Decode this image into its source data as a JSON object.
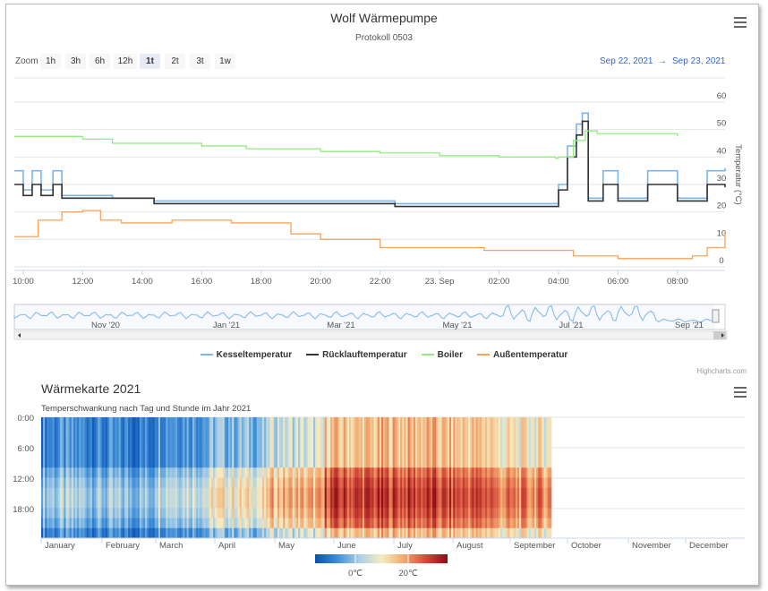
{
  "chart1": {
    "title": "Wolf Wärmepumpe",
    "subtitle": "Protokoll 0503",
    "zoom_label": "Zoom",
    "zoom_buttons": [
      "1h",
      "3h",
      "6h",
      "12h",
      "1t",
      "2t",
      "3t",
      "1w"
    ],
    "zoom_active": "1t",
    "range_from": "Sep 22, 2021",
    "range_arrow": "→",
    "range_to": "Sep 23, 2021",
    "credits": "Highcharts.com"
  },
  "chart_data": [
    {
      "type": "line",
      "title": "Wolf Wärmepumpe",
      "subtitle": "Protokoll 0503",
      "xlabel": "",
      "ylabel": "Temperatur (°C)",
      "ylim": [
        0,
        60
      ],
      "y_ticks": [
        0,
        10,
        20,
        30,
        40,
        50,
        60
      ],
      "x_ticks": [
        "10:00",
        "12:00",
        "14:00",
        "16:00",
        "18:00",
        "20:00",
        "22:00",
        "23. Sep",
        "02:00",
        "04:00",
        "06:00",
        "08:00"
      ],
      "navigator_ticks": [
        "Nov '20",
        "Jan '21",
        "Mar '21",
        "May '21",
        "Jul '21",
        "Sep '21"
      ],
      "legend_position": "bottom",
      "series": [
        {
          "name": "Kesseltemperatur",
          "color": "#7cb5ec",
          "x": [
            9.7,
            10.0,
            10.3,
            10.6,
            11.0,
            11.3,
            13.0,
            14.4,
            16.0,
            18.0,
            20.0,
            21.0,
            22.5,
            24.0,
            26.0,
            27.9,
            28.0,
            28.3,
            28.6,
            28.8,
            29.0,
            29.5,
            30.0,
            31.0,
            32.0,
            33.0,
            33.6
          ],
          "y": [
            35,
            28,
            35,
            28,
            35,
            26,
            25,
            24,
            24,
            24,
            24,
            24,
            23,
            23,
            23,
            23,
            30,
            44,
            52,
            56,
            25,
            35,
            25,
            35,
            25,
            35,
            36
          ]
        },
        {
          "name": "Rücklauftemperatur",
          "color": "#333333",
          "x": [
            9.7,
            10.0,
            10.3,
            10.6,
            11.0,
            11.3,
            13.0,
            14.4,
            16.0,
            18.0,
            20.0,
            22.0,
            22.5,
            24.0,
            26.0,
            27.9,
            28.0,
            28.3,
            28.6,
            28.8,
            29.0,
            29.5,
            30.0,
            31.0,
            32.0,
            33.0,
            33.6
          ],
          "y": [
            30,
            26,
            30,
            26,
            30,
            25,
            25,
            23,
            23,
            23,
            23,
            23,
            22,
            22,
            22,
            22,
            28,
            40,
            48,
            53,
            24,
            30,
            24,
            30,
            24,
            30,
            29
          ]
        },
        {
          "name": "Boiler",
          "color": "#90ed7d",
          "x": [
            9.7,
            10.3,
            12.0,
            13.0,
            14.0,
            16.0,
            17.5,
            20.0,
            22.0,
            24.0,
            26.0,
            27.9,
            28.0,
            28.5,
            28.9,
            29.3,
            30.0,
            32.0
          ],
          "y": [
            47.5,
            47.5,
            46.5,
            45,
            45,
            44,
            43,
            42,
            41.5,
            40.5,
            40,
            39.5,
            40,
            46,
            49.5,
            48.5,
            48.5,
            47.5
          ]
        },
        {
          "name": "Außentemperatur",
          "color": "#f7a35c",
          "x": [
            9.7,
            10.5,
            11.3,
            12.0,
            12.6,
            13.3,
            15.0,
            17.0,
            19.0,
            20.0,
            22.0,
            24.0,
            25.5,
            27.0,
            28.5,
            30.0,
            32.0,
            32.5,
            33.0,
            33.6
          ],
          "y": [
            11,
            17,
            20,
            20.5,
            17,
            16,
            17,
            16,
            12,
            10,
            7,
            7,
            6,
            6,
            4,
            3,
            3,
            4,
            7,
            13
          ]
        }
      ]
    },
    {
      "type": "heatmap",
      "title": "Wärmekarte 2021",
      "subtitle": "Temperschwankung nach Tag und Stunde im Jahr 2021",
      "xlabel": "",
      "ylabel": "",
      "x_ticks": [
        "January",
        "February",
        "March",
        "April",
        "May",
        "June",
        "July",
        "August",
        "September",
        "October",
        "November",
        "December"
      ],
      "y_ticks": [
        "0:00",
        "6:00",
        "12:00",
        "18:00"
      ],
      "colorbar_ticks": [
        "0℃",
        "20℃"
      ],
      "colorbar_colors": [
        "#0a50b4",
        "#3d8ed8",
        "#a9cfe6",
        "#f5ecc4",
        "#f4a96e",
        "#d44a3a",
        "#8b0a14"
      ],
      "legend_position": "bottom",
      "monthly_day_mean": [
        2,
        1,
        5,
        8,
        12,
        19,
        19,
        18,
        15
      ],
      "monthly_night_mean": [
        -1,
        -2,
        1,
        3,
        7,
        13,
        14,
        13,
        10
      ]
    }
  ]
}
